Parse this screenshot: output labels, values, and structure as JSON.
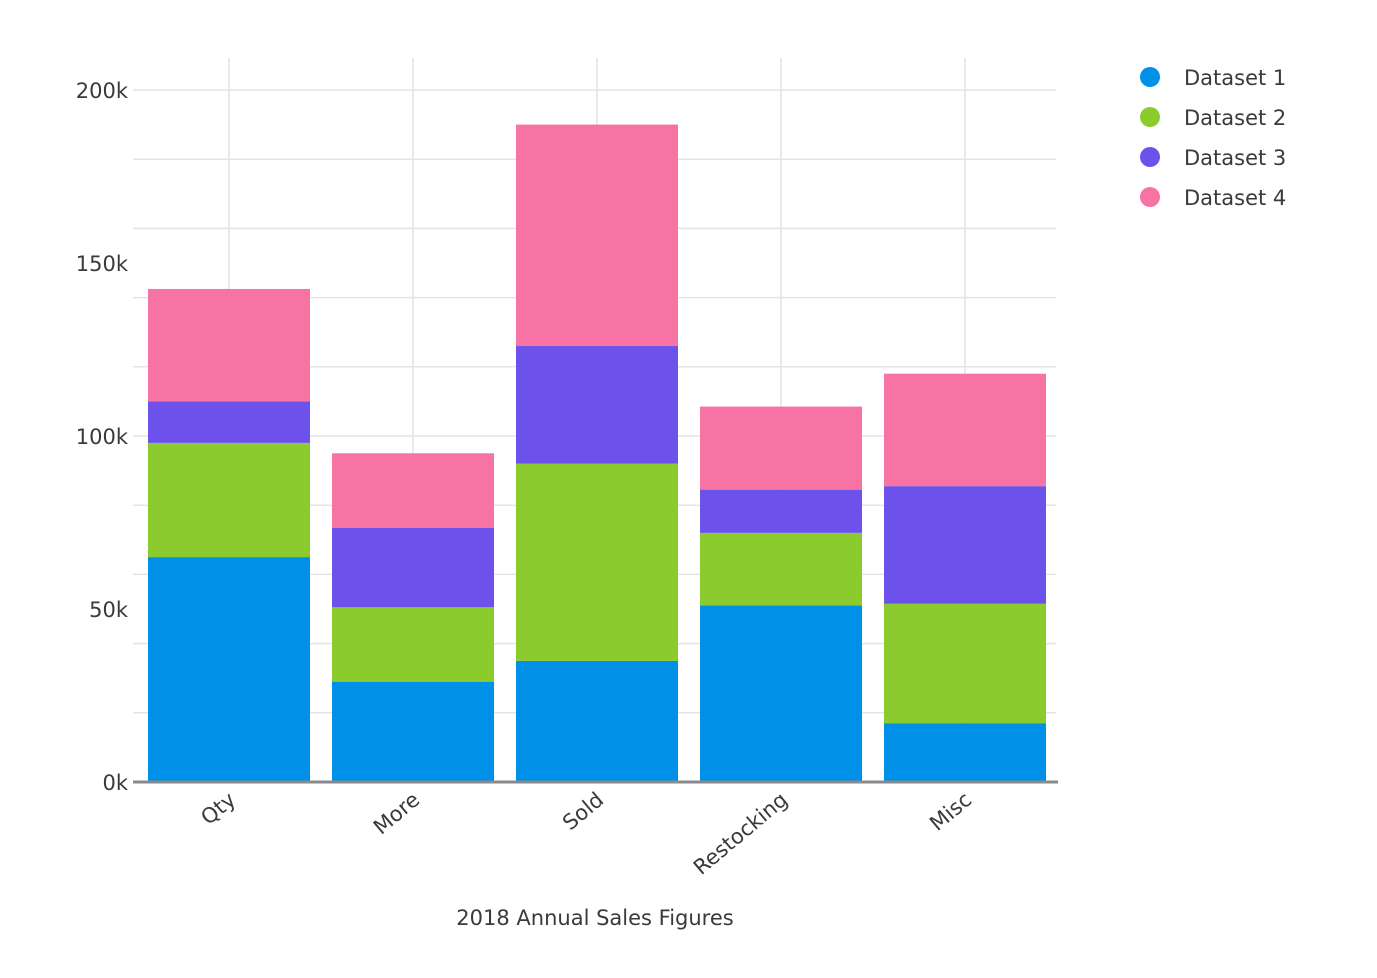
{
  "chart_data": {
    "type": "bar",
    "stacked": true,
    "categories": [
      "Qty",
      "More",
      "Sold",
      "Restocking",
      "Misc"
    ],
    "series": [
      {
        "name": "Dataset 1",
        "color": "#0090e8",
        "values": [
          65000,
          29000,
          35000,
          51000,
          17000
        ]
      },
      {
        "name": "Dataset 2",
        "color": "#8bcb2e",
        "values": [
          33000,
          21500,
          57000,
          21000,
          34500
        ]
      },
      {
        "name": "Dataset 3",
        "color": "#6c52eb",
        "values": [
          12000,
          23000,
          34000,
          12500,
          34000
        ]
      },
      {
        "name": "Dataset 4",
        "color": "#f673a3",
        "values": [
          32500,
          21500,
          64000,
          24000,
          32500
        ]
      }
    ],
    "title": "",
    "xlabel": "2018 Annual Sales Figures",
    "ylabel": "",
    "ylim": [
      0,
      200000
    ],
    "yticks": [
      {
        "value": 0,
        "label": "0k"
      },
      {
        "value": 50000,
        "label": "50k"
      },
      {
        "value": 100000,
        "label": "100k"
      },
      {
        "value": 150000,
        "label": "150k"
      },
      {
        "value": 200000,
        "label": "200k"
      }
    ],
    "minor_grid_step": 20000,
    "grid": true,
    "legend_position": "top-right"
  }
}
